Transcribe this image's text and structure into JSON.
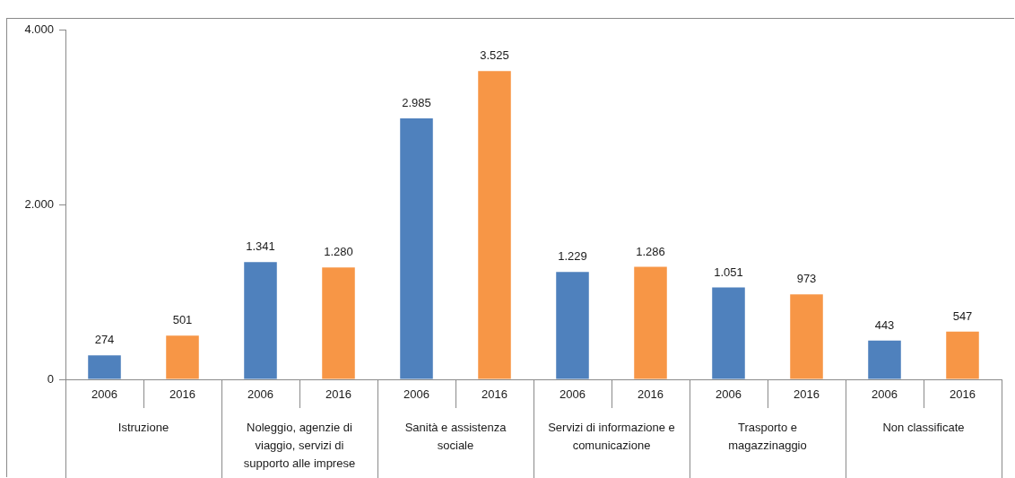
{
  "chart_data": {
    "type": "bar",
    "categories": [
      "Istruzione",
      "Noleggio, agenzie di viaggio, servizi di supporto alle imprese",
      "Sanità e assistenza sociale",
      "Servizi di informazione e comunicazione",
      "Trasporto e magazzinaggio",
      "Non classificate"
    ],
    "series": [
      {
        "name": "2006",
        "color": "#4f81bd",
        "values": [
          274,
          1341,
          2985,
          1229,
          1051,
          443
        ],
        "value_labels": [
          "274",
          "1.341",
          "2.985",
          "1.229",
          "1.051",
          "443"
        ]
      },
      {
        "name": "2016",
        "color": "#f79646",
        "values": [
          501,
          1280,
          3525,
          1286,
          973,
          547
        ],
        "value_labels": [
          "501",
          "1.280",
          "3.525",
          "1.286",
          "973",
          "547"
        ]
      }
    ],
    "ylim": [
      0,
      4000
    ],
    "yticks": [
      0,
      {
        "value": 2000,
        "label": "2.000"
      },
      {
        "value": 4000,
        "label": "4.000"
      }
    ],
    "grid": false,
    "legend": false
  }
}
